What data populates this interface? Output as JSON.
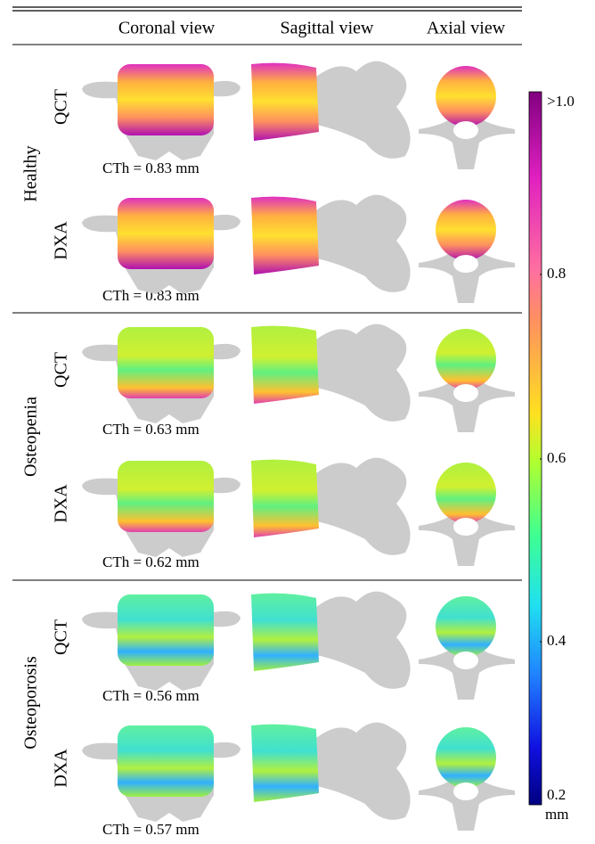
{
  "header": {
    "columns": [
      "Coronal view",
      "Sagittal view",
      "Axial view"
    ]
  },
  "groups": [
    {
      "label": "Healthy",
      "rows": [
        {
          "modality": "QCT",
          "cth": "CTh = 0.83 mm"
        },
        {
          "modality": "DXA",
          "cth": "CTh = 0.83 mm"
        }
      ]
    },
    {
      "label": "Osteopenia",
      "rows": [
        {
          "modality": "QCT",
          "cth": "CTh = 0.63 mm"
        },
        {
          "modality": "DXA",
          "cth": "CTh = 0.62 mm"
        }
      ]
    },
    {
      "label": "Osteoporosis",
      "rows": [
        {
          "modality": "QCT",
          "cth": "CTh = 0.56 mm"
        },
        {
          "modality": "DXA",
          "cth": "CTh = 0.57 mm"
        }
      ]
    }
  ],
  "colorbar": {
    "labels": [
      ">1.0",
      "0.8",
      "0.6",
      "0.4",
      "0.2"
    ],
    "unit": "mm"
  }
}
